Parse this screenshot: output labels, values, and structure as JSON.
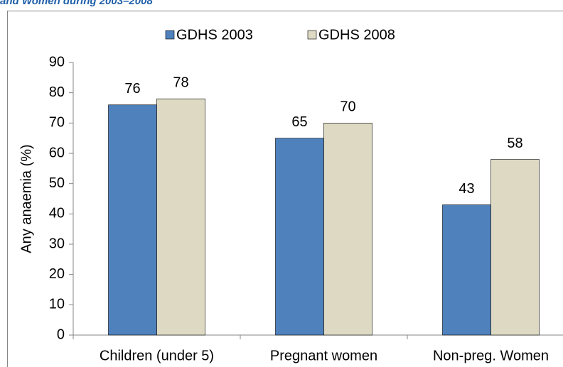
{
  "chart_data": {
    "type": "bar",
    "title": "and Women during 2003–2008",
    "y_label": "Any anaemia (%)",
    "categories": [
      "Children (under 5)",
      "Pregnant women",
      "Non-preg. Women"
    ],
    "series": [
      {
        "name": "GDHS 2003",
        "color": "#4f81bd",
        "values": [
          76,
          65,
          43
        ]
      },
      {
        "name": "GDHS 2008",
        "color": "#ddd9c3",
        "values": [
          78,
          70,
          58
        ]
      }
    ],
    "ylim": [
      0,
      90
    ],
    "yticks": [
      0,
      10,
      20,
      30,
      40,
      50,
      60,
      70,
      80,
      90
    ],
    "legend": "top"
  }
}
